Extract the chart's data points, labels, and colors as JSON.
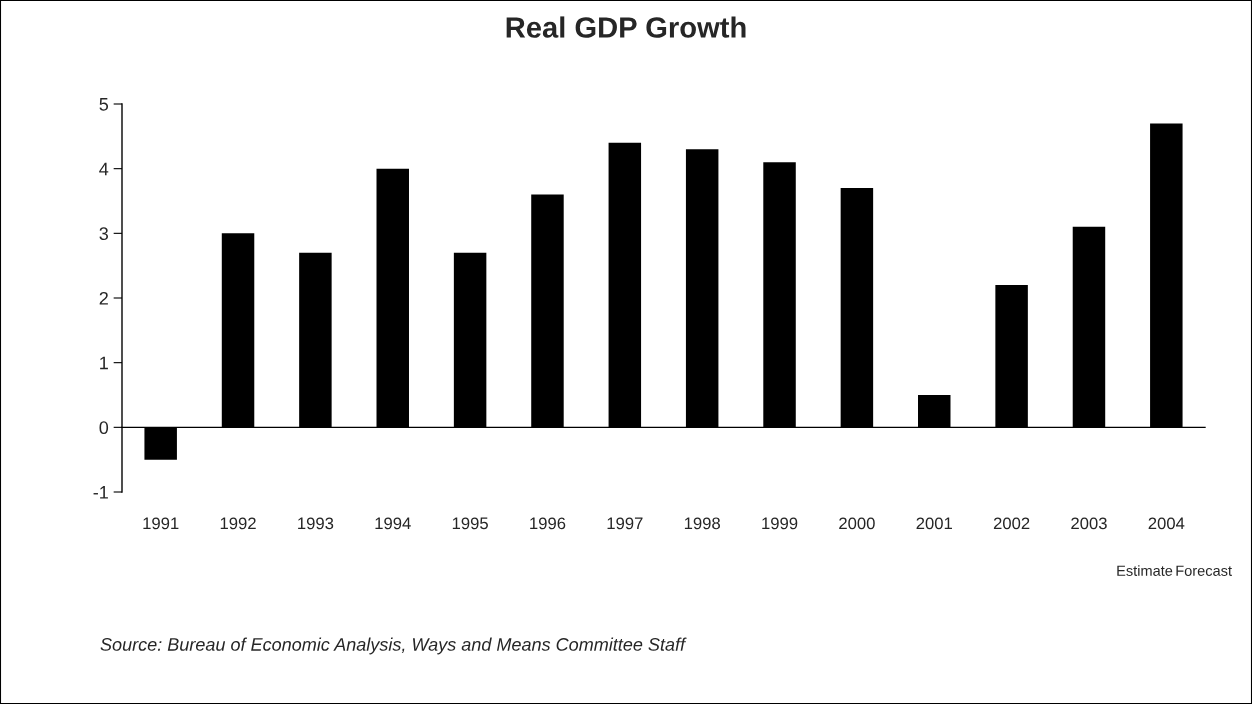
{
  "chart_data": {
    "type": "bar",
    "title": "Real GDP Growth",
    "categories": [
      "1991",
      "1992",
      "1993",
      "1994",
      "1995",
      "1996",
      "1997",
      "1998",
      "1999",
      "2000",
      "2001",
      "2002",
      "2003",
      "2004"
    ],
    "values": [
      -0.5,
      3.0,
      2.7,
      4.0,
      2.7,
      3.6,
      4.4,
      4.3,
      4.1,
      3.7,
      0.5,
      2.2,
      3.1,
      4.7
    ],
    "color": "#000000",
    "ylim": [
      -1,
      5
    ],
    "yticks": [
      -1,
      0,
      1,
      2,
      3,
      4,
      5
    ],
    "annotations": [
      "Estimate",
      "Forecast",
      "Source: Bureau of Economic Analysis, Ways and Means Committee Staff"
    ]
  }
}
